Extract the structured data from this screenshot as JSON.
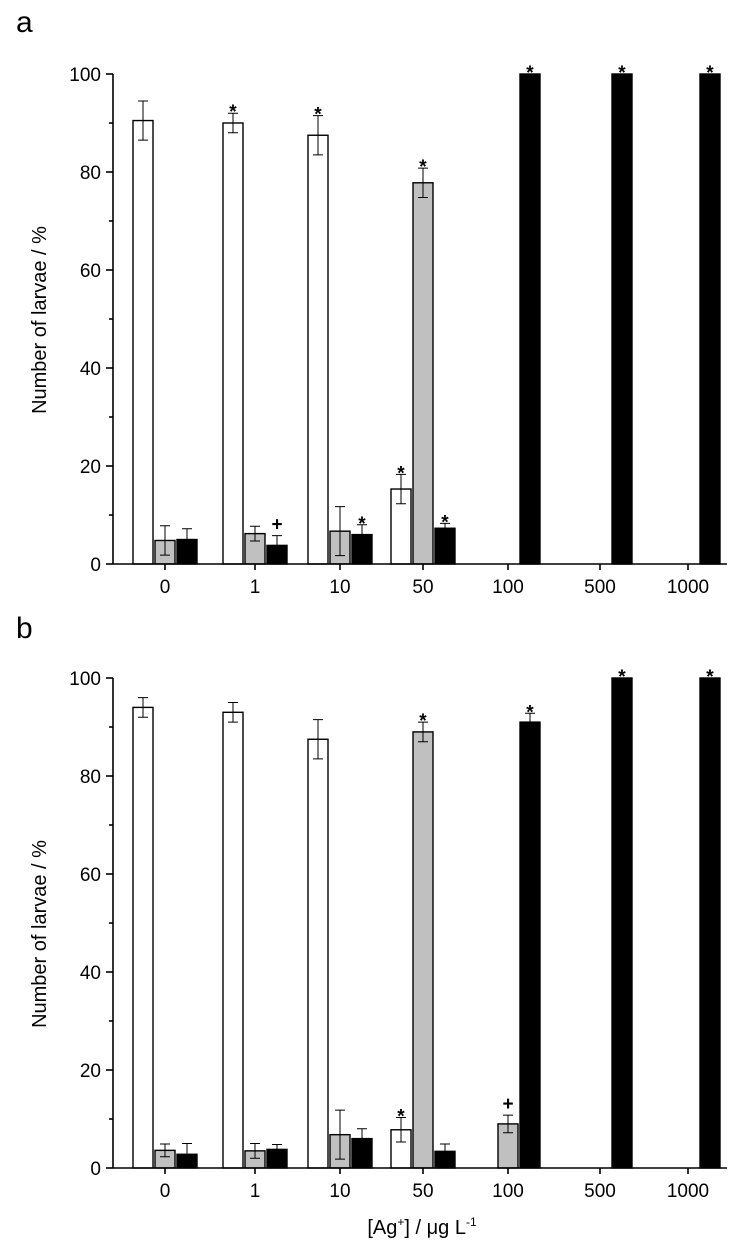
{
  "chart_data": [
    {
      "type": "bar",
      "panel_label": "a",
      "categories": [
        "0",
        "1",
        "10",
        "50",
        "100",
        "500",
        "1000"
      ],
      "ylabel": "Number of larvae / %",
      "xlabel": "",
      "ylim": [
        0,
        100
      ],
      "yticks": [
        "0",
        "20",
        "40",
        "60",
        "80",
        "100"
      ],
      "series": [
        {
          "name": "white",
          "color": "#ffffff",
          "values": [
            90.5,
            90.0,
            87.5,
            15.3,
            null,
            null,
            null
          ],
          "errors": [
            4.0,
            2.0,
            4.0,
            3.0,
            null,
            null,
            null
          ],
          "marks": [
            "",
            "*",
            "*",
            "*",
            "",
            "",
            ""
          ]
        },
        {
          "name": "grey",
          "color": "#c0c0c0",
          "values": [
            4.8,
            6.2,
            6.7,
            77.8,
            null,
            null,
            null
          ],
          "errors": [
            3.0,
            1.5,
            5.0,
            3.0,
            null,
            null,
            null
          ],
          "marks": [
            "",
            "",
            "",
            "*",
            "",
            "",
            ""
          ]
        },
        {
          "name": "black",
          "color": "#000000",
          "values": [
            5.0,
            3.8,
            6.0,
            7.3,
            100,
            100,
            100
          ],
          "errors": [
            2.2,
            2.0,
            2.0,
            1.0,
            0,
            0,
            0
          ],
          "marks": [
            "",
            "+",
            "*",
            "*",
            "*",
            "*",
            "*"
          ]
        }
      ]
    },
    {
      "type": "bar",
      "panel_label": "b",
      "categories": [
        "0",
        "1",
        "10",
        "50",
        "100",
        "500",
        "1000"
      ],
      "ylabel": "Number of larvae / %",
      "xlabel_parts": {
        "pre": "[Ag",
        "sup1": "+",
        "mid": "] / μg L",
        "sup2": "-1"
      },
      "ylim": [
        0,
        100
      ],
      "yticks": [
        "0",
        "20",
        "40",
        "60",
        "80",
        "100"
      ],
      "series": [
        {
          "name": "white",
          "color": "#ffffff",
          "values": [
            94.0,
            93.0,
            87.5,
            7.8,
            null,
            null,
            null
          ],
          "errors": [
            2.0,
            2.0,
            4.0,
            2.5,
            null,
            null,
            null
          ],
          "marks": [
            "",
            "",
            "",
            "*",
            "",
            "",
            ""
          ]
        },
        {
          "name": "grey",
          "color": "#c0c0c0",
          "values": [
            3.6,
            3.5,
            6.8,
            89.0,
            9.0,
            null,
            null
          ],
          "errors": [
            1.3,
            1.5,
            5.0,
            2.0,
            1.8,
            null,
            null
          ],
          "marks": [
            "",
            "",
            "",
            "*",
            "+",
            "",
            ""
          ]
        },
        {
          "name": "black",
          "color": "#000000",
          "values": [
            2.8,
            3.8,
            6.0,
            3.4,
            91.0,
            100,
            100
          ],
          "errors": [
            2.2,
            1.0,
            2.0,
            1.5,
            1.8,
            0,
            0
          ],
          "marks": [
            "",
            "",
            "",
            "",
            "*",
            "*",
            "*"
          ]
        }
      ]
    }
  ]
}
